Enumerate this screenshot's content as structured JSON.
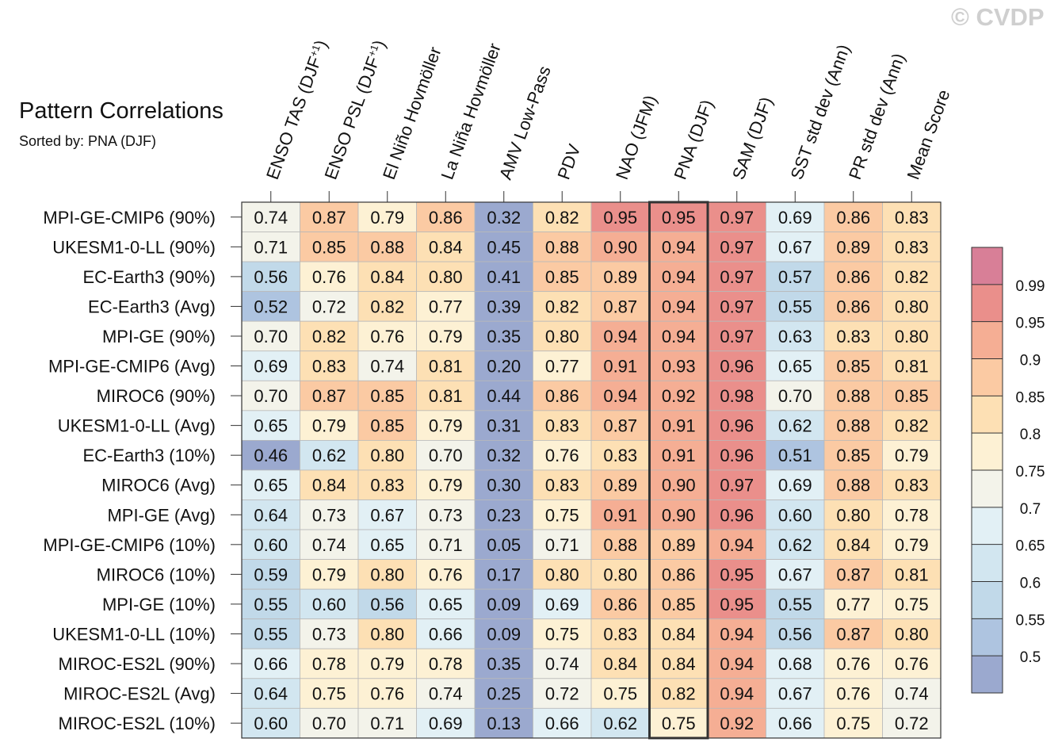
{
  "watermark": "© CVDP",
  "title": "Pattern Correlations",
  "subtitle": "Sorted by: PNA (DJF)",
  "chart_data": {
    "type": "heatmap",
    "columns": [
      "ENSO TAS (DJF+1)",
      "ENSO PSL (DJF+1)",
      "El Niño Hovmöller",
      "La Niña Hovmöller",
      "AMV Low-Pass",
      "PDV",
      "NAO (JFM)",
      "PNA (DJF)",
      "SAM (DJF)",
      "SST std dev (Ann)",
      "PR std dev (Ann)",
      "Mean Score"
    ],
    "highlighted_column": "PNA (DJF)",
    "rows": [
      "MPI-GE-CMIP6 (90%)",
      "UKESM1-0-LL (90%)",
      "EC-Earth3 (90%)",
      "EC-Earth3 (Avg)",
      "MPI-GE (90%)",
      "MPI-GE-CMIP6 (Avg)",
      "MIROC6 (90%)",
      "UKESM1-0-LL (Avg)",
      "EC-Earth3 (10%)",
      "MIROC6 (Avg)",
      "MPI-GE (Avg)",
      "MPI-GE-CMIP6 (10%)",
      "MIROC6 (10%)",
      "MPI-GE (10%)",
      "UKESM1-0-LL (10%)",
      "MIROC-ES2L (90%)",
      "MIROC-ES2L (Avg)",
      "MIROC-ES2L (10%)"
    ],
    "values": [
      [
        0.74,
        0.87,
        0.79,
        0.86,
        0.32,
        0.82,
        0.95,
        0.95,
        0.97,
        0.69,
        0.86,
        0.83
      ],
      [
        0.71,
        0.85,
        0.88,
        0.84,
        0.45,
        0.88,
        0.9,
        0.94,
        0.97,
        0.67,
        0.89,
        0.83
      ],
      [
        0.56,
        0.76,
        0.84,
        0.8,
        0.41,
        0.85,
        0.89,
        0.94,
        0.97,
        0.57,
        0.86,
        0.82
      ],
      [
        0.52,
        0.72,
        0.82,
        0.77,
        0.39,
        0.82,
        0.87,
        0.94,
        0.97,
        0.55,
        0.86,
        0.8
      ],
      [
        0.7,
        0.82,
        0.76,
        0.79,
        0.35,
        0.8,
        0.94,
        0.94,
        0.97,
        0.63,
        0.83,
        0.8
      ],
      [
        0.69,
        0.83,
        0.74,
        0.81,
        0.2,
        0.77,
        0.91,
        0.93,
        0.96,
        0.65,
        0.85,
        0.81
      ],
      [
        0.7,
        0.87,
        0.85,
        0.81,
        0.44,
        0.86,
        0.94,
        0.92,
        0.98,
        0.7,
        0.88,
        0.85
      ],
      [
        0.65,
        0.79,
        0.85,
        0.79,
        0.31,
        0.83,
        0.87,
        0.91,
        0.96,
        0.62,
        0.88,
        0.82
      ],
      [
        0.46,
        0.62,
        0.8,
        0.7,
        0.32,
        0.76,
        0.83,
        0.91,
        0.96,
        0.51,
        0.85,
        0.79
      ],
      [
        0.65,
        0.84,
        0.83,
        0.79,
        0.3,
        0.83,
        0.89,
        0.9,
        0.97,
        0.69,
        0.88,
        0.83
      ],
      [
        0.64,
        0.73,
        0.67,
        0.73,
        0.23,
        0.75,
        0.91,
        0.9,
        0.96,
        0.6,
        0.8,
        0.78
      ],
      [
        0.6,
        0.74,
        0.65,
        0.71,
        0.05,
        0.71,
        0.88,
        0.89,
        0.94,
        0.62,
        0.84,
        0.79
      ],
      [
        0.59,
        0.79,
        0.8,
        0.76,
        0.17,
        0.8,
        0.8,
        0.86,
        0.95,
        0.67,
        0.87,
        0.81
      ],
      [
        0.55,
        0.6,
        0.56,
        0.65,
        0.09,
        0.69,
        0.86,
        0.85,
        0.95,
        0.55,
        0.77,
        0.75
      ],
      [
        0.55,
        0.73,
        0.8,
        0.66,
        0.09,
        0.75,
        0.83,
        0.84,
        0.94,
        0.56,
        0.87,
        0.8
      ],
      [
        0.66,
        0.78,
        0.79,
        0.78,
        0.35,
        0.74,
        0.84,
        0.84,
        0.94,
        0.68,
        0.76,
        0.76
      ],
      [
        0.64,
        0.75,
        0.76,
        0.74,
        0.25,
        0.72,
        0.75,
        0.82,
        0.94,
        0.67,
        0.76,
        0.74
      ],
      [
        0.6,
        0.7,
        0.71,
        0.69,
        0.13,
        0.66,
        0.62,
        0.75,
        0.92,
        0.66,
        0.75,
        0.72
      ]
    ],
    "colorbar": {
      "levels": [
        0.5,
        0.55,
        0.6,
        0.65,
        0.7,
        0.75,
        0.8,
        0.85,
        0.9,
        0.95,
        0.99
      ],
      "labels": [
        "0.5",
        "0.55",
        "0.6",
        "0.65",
        "0.7",
        "0.75",
        "0.8",
        "0.85",
        "0.9",
        "0.95",
        "0.99"
      ],
      "colors": [
        "#9ba9cf",
        "#aec4e0",
        "#c1d9e9",
        "#d2e6f0",
        "#e2f0f5",
        "#f3f3ea",
        "#fdf1d4",
        "#fde0b4",
        "#fbcaa3",
        "#f5ae94",
        "#ea8f8b",
        "#d87f97"
      ]
    }
  }
}
